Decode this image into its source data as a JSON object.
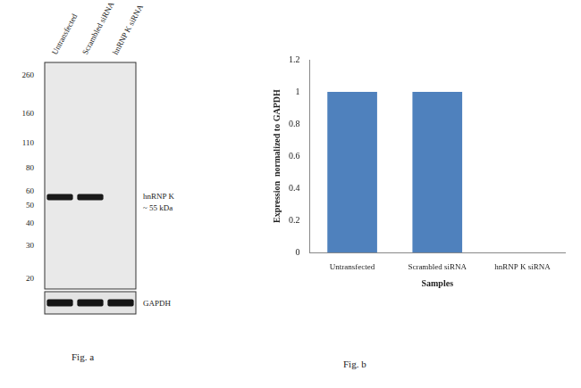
{
  "blot": {
    "lanes": [
      "Untransfected",
      "Scrambled siRNA",
      "hnRNP K siRNA"
    ],
    "markers": [
      260,
      160,
      110,
      80,
      60,
      50,
      40,
      30,
      20
    ],
    "bands": [
      {
        "label": [
          "hnRNP K",
          "~ 55 kDa"
        ],
        "kda": 55,
        "present": [
          true,
          true,
          false
        ]
      }
    ],
    "loading_control": {
      "label": "GAPDH",
      "present": [
        true,
        true,
        true
      ]
    },
    "caption": "Fig. a"
  },
  "chart_data": {
    "type": "bar",
    "categories": [
      "Untransfected",
      "Scrambled siRNA",
      "hnRNP K siRNA"
    ],
    "values": [
      1,
      1,
      0
    ],
    "color": "#4f81bd",
    "xlabel": "Samples",
    "ylabel": "Expression  normalized to GAPDH",
    "ylim": [
      0,
      1.2
    ],
    "yticks": [
      0,
      0.2,
      0.4,
      0.6,
      0.8,
      1,
      1.2
    ],
    "grid": false,
    "caption": "Fig. b"
  }
}
